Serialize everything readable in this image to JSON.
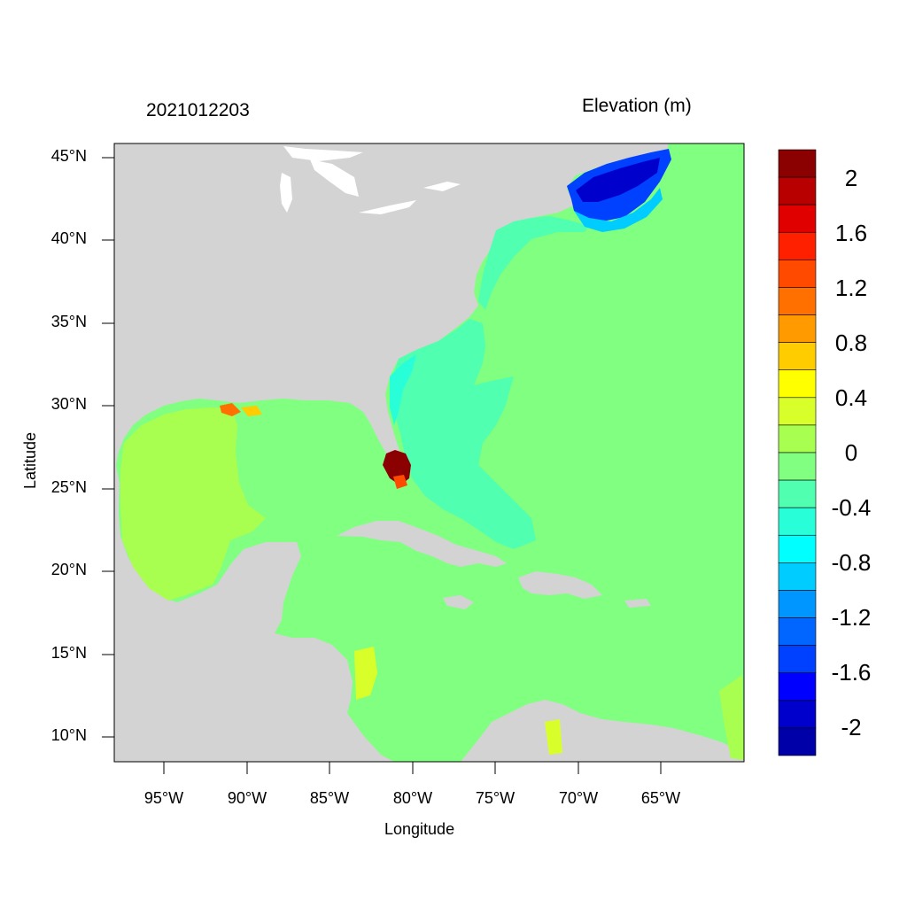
{
  "header": {
    "timestamp": "2021012203",
    "variable_title": "Elevation (m)"
  },
  "axes": {
    "xlabel": "Longitude",
    "ylabel": "Latitude",
    "lat_ticks": [
      "45°N",
      "40°N",
      "35°N",
      "30°N",
      "25°N",
      "20°N",
      "15°N",
      "10°N"
    ],
    "lon_ticks": [
      "95°W",
      "90°W",
      "85°W",
      "80°W",
      "75°W",
      "70°W",
      "65°W"
    ]
  },
  "colorbar": {
    "labels": [
      "2",
      "1.6",
      "1.2",
      "0.8",
      "0.4",
      "0",
      "-0.4",
      "-0.8",
      "-1.2",
      "-1.6",
      "-2"
    ],
    "colors": [
      "#8b0000",
      "#b80000",
      "#e00000",
      "#ff2000",
      "#ff4a00",
      "#ff7000",
      "#ff9a00",
      "#ffcc00",
      "#ffff00",
      "#d9ff2a",
      "#a8ff50",
      "#80ff80",
      "#50ffb0",
      "#28ffd8",
      "#00ffff",
      "#00ccff",
      "#0096ff",
      "#0066ff",
      "#0040ff",
      "#0000ff",
      "#0000cc",
      "#0000a8"
    ]
  },
  "map": {
    "land_color": "#d3d3d3",
    "ocean_color": "#80ff80",
    "gulf_color": "#a8ff50",
    "shelf_color": "#50ffb0",
    "shallow_color": "#28ffd8",
    "neg_color": "#0040ff",
    "pos_color": "#8b0000"
  }
}
